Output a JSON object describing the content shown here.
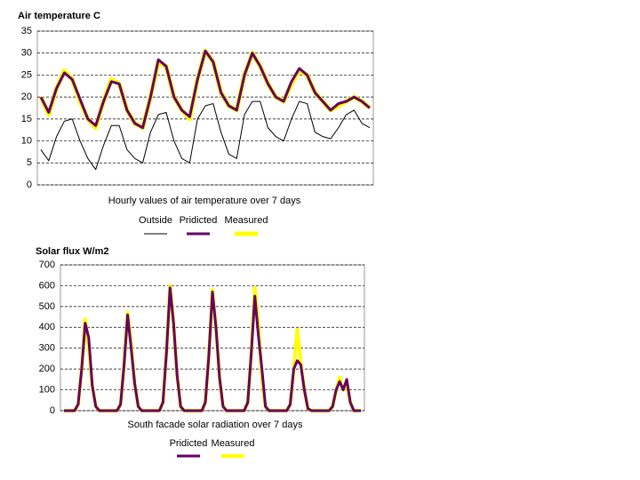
{
  "chart_data": [
    {
      "type": "line",
      "title": "Air temperature C",
      "subtitle": "Hourly values of air temperature over 7 days",
      "ylim": [
        0,
        35
      ],
      "yticks": [
        0,
        5,
        10,
        15,
        20,
        25,
        30,
        35
      ],
      "grid": true,
      "series": [
        {
          "name": "Outside",
          "color": "#000000",
          "values": [
            8,
            5.5,
            11,
            14.5,
            15,
            10,
            6,
            3.5,
            9,
            13.5,
            13.5,
            8,
            6,
            5,
            12,
            16,
            16.5,
            10,
            6,
            5,
            15,
            18,
            18.5,
            12,
            7,
            6,
            16,
            19,
            19,
            13,
            11,
            10,
            15,
            19,
            18.5,
            12,
            11,
            10.5,
            13,
            16,
            17,
            14,
            13
          ]
        },
        {
          "name": "Measured",
          "color": "#ffff00",
          "values": [
            20,
            16,
            22,
            26,
            24,
            19,
            15,
            13,
            19,
            24,
            23,
            17,
            14,
            13,
            20,
            28,
            27,
            20,
            17,
            15,
            24,
            30.5,
            28,
            21,
            18,
            17,
            25,
            30,
            27,
            23,
            20,
            19,
            23,
            26,
            25,
            21,
            19,
            17,
            18,
            19,
            20,
            19,
            17.5
          ]
        },
        {
          "name": "Pridicted",
          "color": "#660066",
          "values": [
            20,
            16.5,
            22,
            25.5,
            24,
            19.5,
            15,
            13.5,
            19,
            23.5,
            23,
            17,
            14,
            13,
            20,
            28.5,
            27,
            20,
            17,
            15.5,
            24,
            30.5,
            28,
            21,
            18,
            17,
            25,
            30,
            27,
            23,
            20,
            19,
            23.5,
            26.5,
            25,
            21,
            19,
            17,
            18.5,
            19,
            20,
            19,
            17.5
          ]
        }
      ]
    },
    {
      "type": "line",
      "title": "Solar flux W/m2",
      "subtitle": "South facade solar radiation over 7 days",
      "ylim": [
        0,
        700
      ],
      "yticks": [
        0,
        100,
        200,
        300,
        400,
        500,
        600,
        700
      ],
      "grid": true,
      "series": [
        {
          "name": "Measured",
          "color": "#ffff00",
          "values": [
            0,
            0,
            0,
            0,
            30,
            200,
            440,
            300,
            120,
            20,
            0,
            0,
            0,
            0,
            0,
            0,
            30,
            220,
            470,
            320,
            130,
            20,
            0,
            0,
            0,
            0,
            0,
            0,
            40,
            280,
            600,
            420,
            170,
            20,
            0,
            0,
            0,
            0,
            0,
            0,
            40,
            270,
            580,
            400,
            160,
            20,
            0,
            0,
            0,
            0,
            0,
            0,
            40,
            280,
            590,
            410,
            160,
            20,
            0,
            0,
            0,
            0,
            0,
            0,
            30,
            190,
            390,
            230,
            100,
            10,
            0,
            0,
            0,
            0,
            0,
            0,
            20,
            100,
            160,
            100,
            130,
            40,
            0,
            0,
            0
          ]
        },
        {
          "name": "Pridicted",
          "color": "#660066",
          "values": [
            0,
            0,
            0,
            0,
            30,
            200,
            420,
            350,
            120,
            20,
            0,
            0,
            0,
            0,
            0,
            0,
            30,
            220,
            460,
            300,
            130,
            20,
            0,
            0,
            0,
            0,
            0,
            0,
            40,
            280,
            590,
            420,
            170,
            20,
            0,
            0,
            0,
            0,
            0,
            0,
            40,
            270,
            570,
            400,
            160,
            20,
            0,
            0,
            0,
            0,
            0,
            0,
            40,
            280,
            550,
            360,
            200,
            20,
            0,
            0,
            0,
            0,
            0,
            0,
            30,
            200,
            240,
            220,
            100,
            10,
            0,
            0,
            0,
            0,
            0,
            0,
            20,
            100,
            140,
            100,
            150,
            40,
            0,
            0,
            0
          ]
        }
      ]
    }
  ]
}
